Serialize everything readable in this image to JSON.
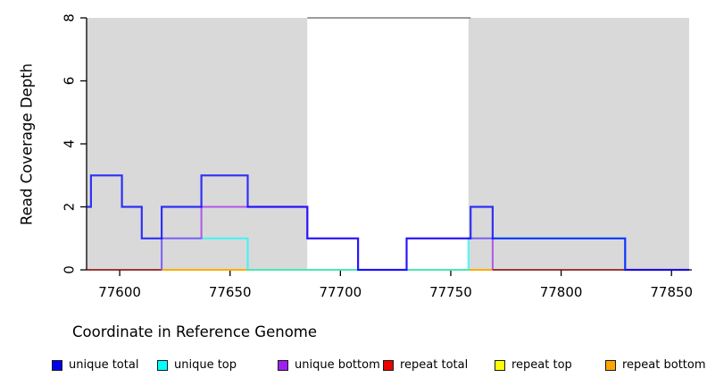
{
  "chart_data": {
    "type": "line",
    "variant": "step-coverage-plot",
    "title": "",
    "xlabel": "Coordinate in Reference Genome",
    "ylabel": "Read Coverage Depth",
    "xlim": [
      77585,
      77858
    ],
    "ylim": [
      0,
      8
    ],
    "xticks": [
      77600,
      77650,
      77700,
      77750,
      77800,
      77850
    ],
    "yticks": [
      0,
      2,
      4,
      6,
      8
    ],
    "grid": false,
    "plot_background": "#ffffff",
    "shaded_regions": [
      {
        "name": "left-repeat-region",
        "x0": 77585,
        "x1": 77685,
        "color": "#d9d9d9"
      },
      {
        "name": "right-repeat-region",
        "x0": 77758,
        "x1": 77858,
        "color": "#d9d9d9"
      }
    ],
    "gap_top_border": {
      "x0": 77685,
      "x1": 77759,
      "y": 8,
      "color": "#7a7a7a"
    },
    "series": [
      {
        "name": "repeat total",
        "color": "#ee0000",
        "opacity": 0.5,
        "width": 1.8,
        "steps": [
          [
            77585,
            0
          ],
          [
            77858,
            0
          ]
        ]
      },
      {
        "name": "repeat top",
        "color": "#ffff00",
        "opacity": 0.85,
        "width": 1.8,
        "steps": [
          [
            77619,
            0
          ],
          [
            77769,
            0
          ]
        ]
      },
      {
        "name": "repeat bottom",
        "color": "#ffa500",
        "opacity": 0.9,
        "width": 1.8,
        "steps": [
          [
            77619,
            0
          ],
          [
            77769,
            0
          ]
        ]
      },
      {
        "name": "unique top",
        "color": "#00ffff",
        "opacity": 0.7,
        "width": 2.0,
        "steps": [
          [
            77619,
            0
          ],
          [
            77619,
            1
          ],
          [
            77658,
            0
          ],
          [
            77758,
            1
          ],
          [
            77829,
            0
          ]
        ]
      },
      {
        "name": "unique bottom",
        "color": "#a020f0",
        "opacity": 0.7,
        "width": 2.0,
        "steps": [
          [
            77619,
            0
          ],
          [
            77619,
            1
          ],
          [
            77637,
            2
          ],
          [
            77685,
            1
          ],
          [
            77708,
            0
          ],
          [
            77730,
            1
          ],
          [
            77769,
            0
          ]
        ]
      },
      {
        "name": "unique total",
        "color": "#0000ff",
        "opacity": 0.78,
        "width": 2.2,
        "steps": [
          [
            77585,
            2
          ],
          [
            77587,
            3
          ],
          [
            77601,
            2
          ],
          [
            77610,
            1
          ],
          [
            77619,
            2
          ],
          [
            77637,
            3
          ],
          [
            77658,
            2
          ],
          [
            77685,
            1
          ],
          [
            77708,
            0
          ],
          [
            77730,
            1
          ],
          [
            77759,
            2
          ],
          [
            77769,
            1
          ],
          [
            77829,
            0
          ],
          [
            77858,
            0
          ]
        ]
      }
    ],
    "legend": [
      {
        "label": "unique total",
        "color": "#0000ee"
      },
      {
        "label": "unique top",
        "color": "#00ffff"
      },
      {
        "label": "unique bottom",
        "color": "#a020f0"
      },
      {
        "label": "repeat total",
        "color": "#ee0000"
      },
      {
        "label": "repeat top",
        "color": "#ffff00"
      },
      {
        "label": "repeat bottom",
        "color": "#ffa500"
      }
    ],
    "legend_position": "bottom"
  }
}
